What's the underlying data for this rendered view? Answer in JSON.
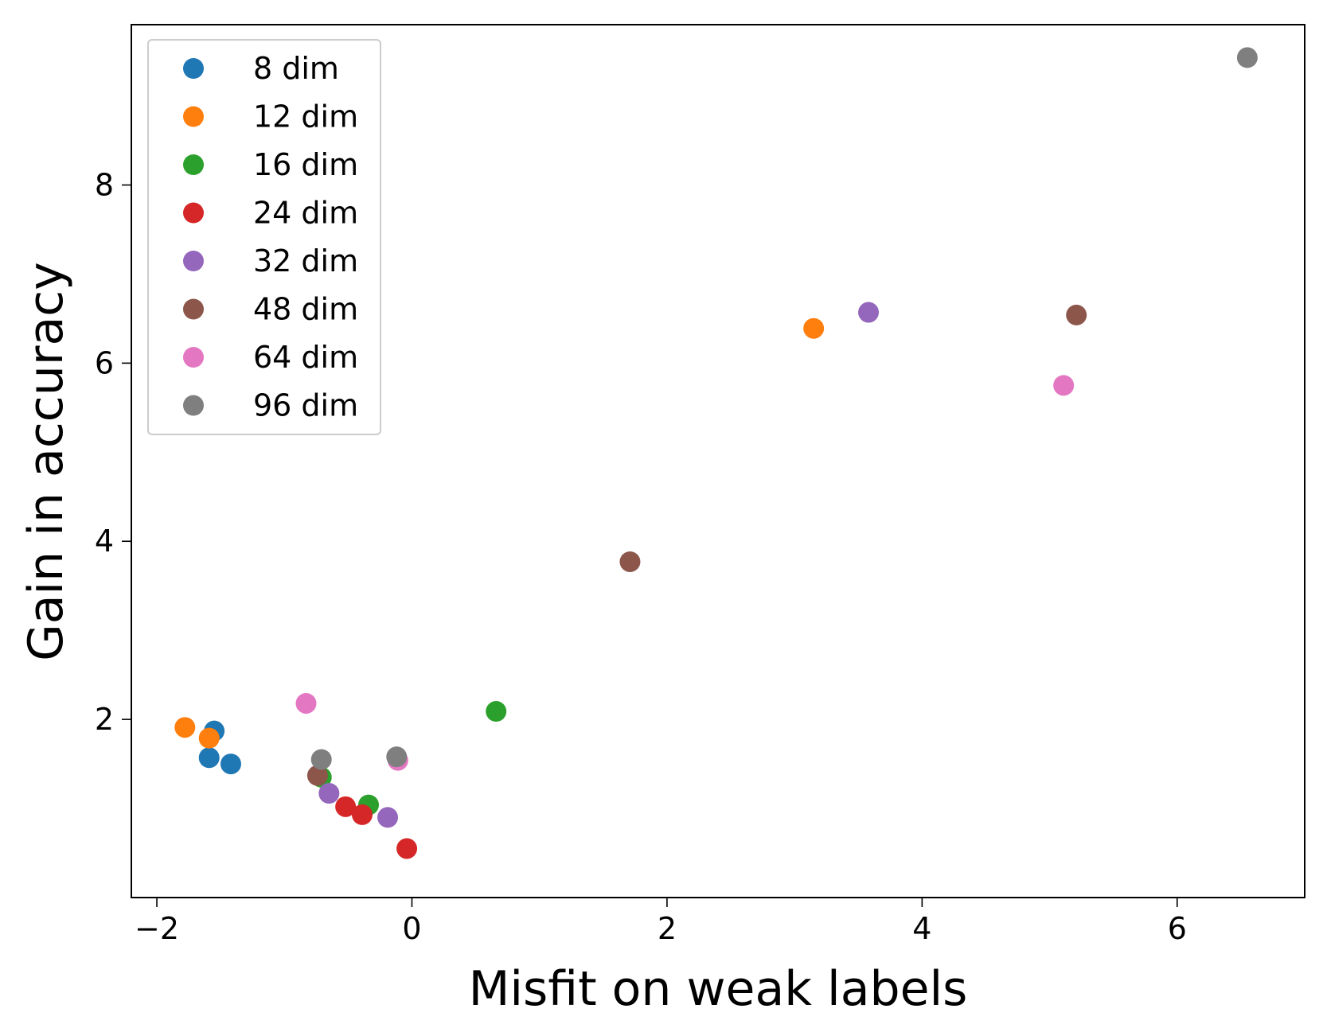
{
  "chart_data": {
    "type": "scatter",
    "title": "",
    "xlabel": "Misfit on weak labels",
    "ylabel": "Gain in accuracy",
    "xlim": [
      -2.2,
      7.0
    ],
    "ylim": [
      0.0,
      9.8
    ],
    "xticks": [
      -2,
      0,
      2,
      4,
      6
    ],
    "xtick_labels": [
      "−2",
      "0",
      "2",
      "4",
      "6"
    ],
    "yticks": [
      2,
      4,
      6,
      8
    ],
    "ytick_labels": [
      "2",
      "4",
      "6",
      "8"
    ],
    "grid": false,
    "legend_position": "top-left",
    "series": [
      {
        "name": "8 dim",
        "color": "#1f77b4",
        "points": [
          [
            -1.55,
            1.87
          ],
          [
            -1.59,
            1.57
          ],
          [
            -1.42,
            1.5
          ]
        ]
      },
      {
        "name": "12 dim",
        "color": "#ff7f0e",
        "points": [
          [
            -1.78,
            1.91
          ],
          [
            -1.59,
            1.79
          ],
          [
            3.15,
            6.39
          ]
        ]
      },
      {
        "name": "16 dim",
        "color": "#2ca02c",
        "points": [
          [
            -0.71,
            1.35
          ],
          [
            -0.34,
            1.04
          ],
          [
            0.66,
            2.09
          ]
        ]
      },
      {
        "name": "24 dim",
        "color": "#d62728",
        "points": [
          [
            -0.52,
            1.02
          ],
          [
            -0.39,
            0.93
          ],
          [
            -0.04,
            0.55
          ]
        ]
      },
      {
        "name": "32 dim",
        "color": "#9467bd",
        "points": [
          [
            -0.65,
            1.17
          ],
          [
            -0.19,
            0.9
          ],
          [
            3.58,
            6.57
          ]
        ]
      },
      {
        "name": "48 dim",
        "color": "#8c564b",
        "points": [
          [
            -0.74,
            1.37
          ],
          [
            1.71,
            3.77
          ],
          [
            5.21,
            6.54
          ]
        ]
      },
      {
        "name": "64 dim",
        "color": "#e377c2",
        "points": [
          [
            -0.83,
            2.18
          ],
          [
            -0.11,
            1.54
          ],
          [
            5.11,
            5.75
          ]
        ]
      },
      {
        "name": "96 dim",
        "color": "#7f7f7f",
        "points": [
          [
            -0.71,
            1.55
          ],
          [
            -0.12,
            1.58
          ],
          [
            6.55,
            9.43
          ]
        ]
      }
    ]
  }
}
